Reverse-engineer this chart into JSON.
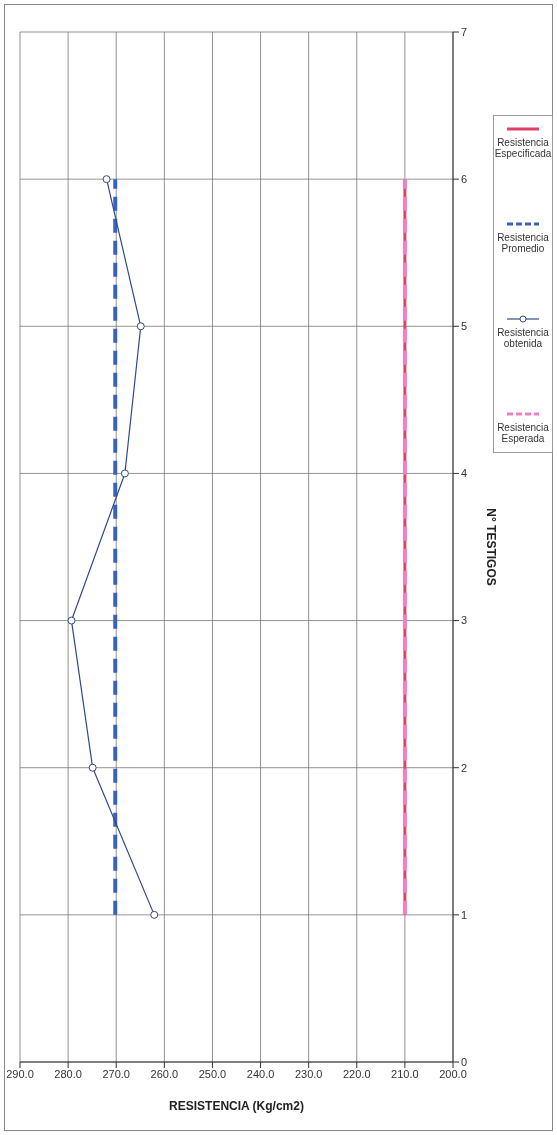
{
  "chart_data": {
    "type": "line",
    "xlabel": "RESISTENCIA (Kg/cm2)",
    "ylabel": "N° TESTIGOS",
    "xlim": [
      290,
      200
    ],
    "xticks": [
      {
        "value": 290,
        "label": "290.0"
      },
      {
        "value": 280,
        "label": "280.0"
      },
      {
        "value": 270,
        "label": "270.0"
      },
      {
        "value": 260,
        "label": "260.0"
      },
      {
        "value": 250,
        "label": "250.0"
      },
      {
        "value": 240,
        "label": "240.0"
      },
      {
        "value": 230,
        "label": "230.0"
      },
      {
        "value": 220,
        "label": "220.0"
      },
      {
        "value": 210,
        "label": "210.0"
      },
      {
        "value": 200,
        "label": "200.0"
      }
    ],
    "ylim": [
      0,
      7
    ],
    "yticks": [
      0,
      1,
      2,
      3,
      4,
      5,
      6,
      7
    ],
    "grid": true,
    "legend": "right",
    "series": [
      {
        "name": "Resistencia Especificada",
        "color": "#e0406a",
        "line_style": "solid",
        "marker": "none",
        "x": [
          210,
          210,
          210,
          210,
          210,
          210
        ],
        "values": [
          1,
          2,
          3,
          4,
          5,
          6
        ]
      },
      {
        "name": "Resistencia Promedio",
        "color": "#3a62b8",
        "line_style": "dashed",
        "marker": "none",
        "x": [
          270.2,
          270.2,
          270.2,
          270.2,
          270.2,
          270.2
        ],
        "values": [
          1,
          2,
          3,
          4,
          5,
          6
        ]
      },
      {
        "name": "Resistencia obtenida",
        "color": "#2f4a8a",
        "line_style": "solid",
        "marker": "circle",
        "x": [
          262.1,
          274.9,
          279.3,
          268.2,
          264.9,
          272.0
        ],
        "values": [
          1,
          2,
          3,
          4,
          5,
          6
        ]
      },
      {
        "name": "Resistencia Esperada",
        "color": "#f080c0",
        "line_style": "dashed",
        "marker": "none",
        "x": [
          210,
          210,
          210,
          210,
          210,
          210
        ],
        "values": [
          1,
          2,
          3,
          4,
          5,
          6
        ]
      }
    ]
  }
}
